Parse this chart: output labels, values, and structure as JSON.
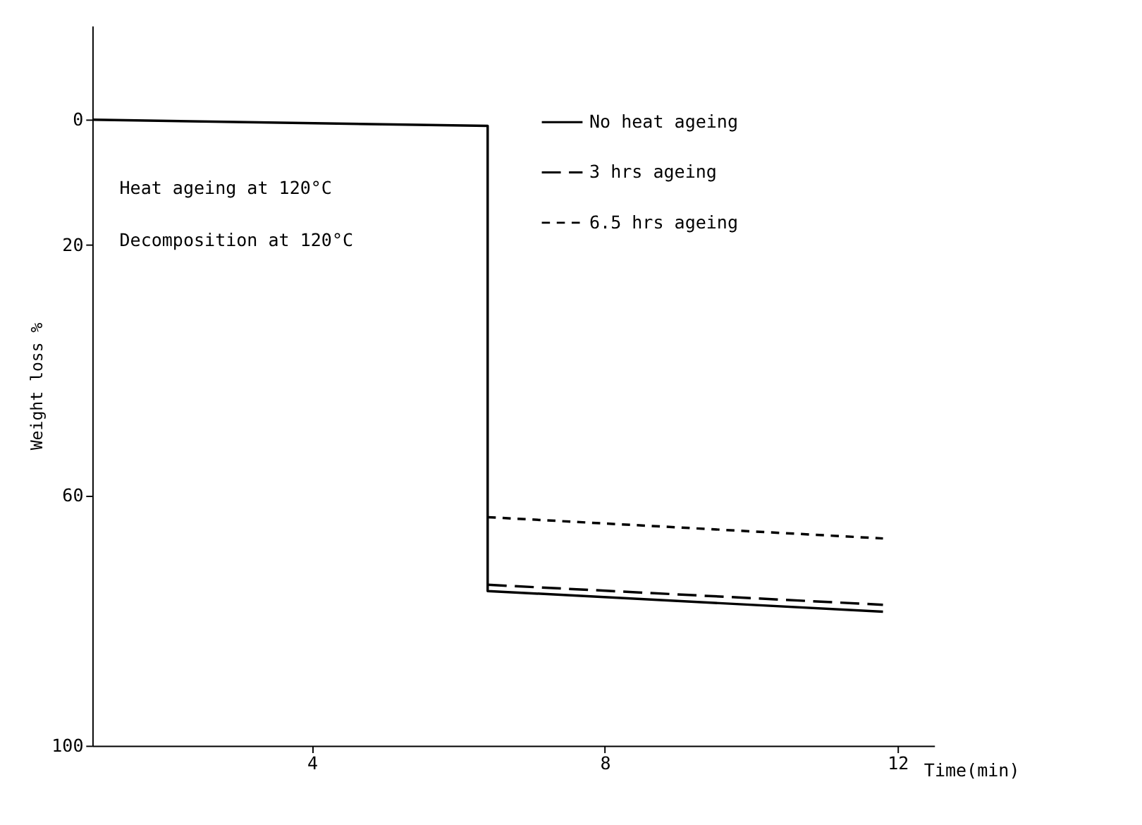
{
  "chart_data": {
    "type": "line",
    "xlabel": "Time(min)",
    "ylabel": "Weight loss %",
    "annotations": [
      "Heat ageing at 120°C",
      "Decomposition at 120°C"
    ],
    "series": [
      {
        "name": "No heat ageing",
        "color": "#000000",
        "line_style": "solid",
        "x": [
          1,
          6.4,
          6.4,
          11.8
        ],
        "values": [
          0,
          1,
          75.3,
          78.6
        ]
      },
      {
        "name": "3 hrs ageing",
        "color": "#000000",
        "line_style": "dashed",
        "x": [
          6.4,
          11.8
        ],
        "values": [
          74.3,
          77.5
        ]
      },
      {
        "name": "6.5 hrs ageing",
        "color": "#000000",
        "line_style": "dotted",
        "x": [
          6.4,
          11.8
        ],
        "values": [
          63.5,
          66.9
        ]
      }
    ],
    "xlim": [
      1,
      12.5
    ],
    "xticks": [
      4,
      8,
      12
    ],
    "ylim": [
      100,
      -15
    ],
    "yticks": [
      0,
      20,
      60,
      100
    ],
    "grid": false,
    "legend": "top right",
    "marker": "none"
  }
}
